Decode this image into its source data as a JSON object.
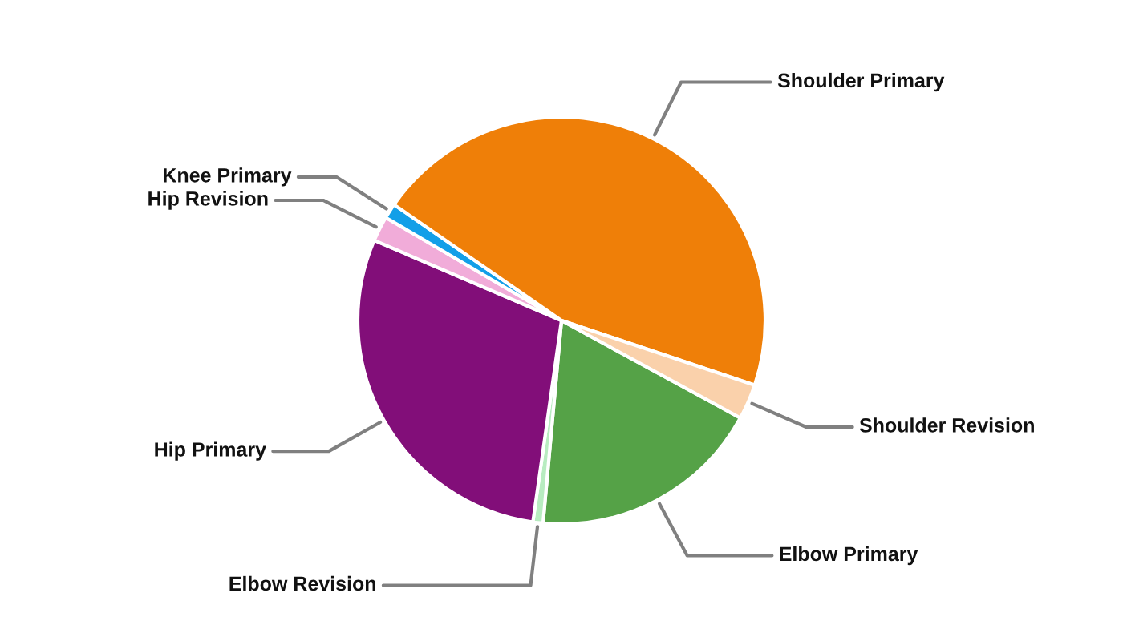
{
  "chart_data": {
    "type": "pie",
    "categories": [
      "Elbow Primary",
      "Elbow Revision",
      "Hip Primary",
      "Hip Revision",
      "Knee Primary",
      "Shoulder Primary",
      "Shoulder Revision"
    ],
    "values": [
      18.5,
      0.8,
      29.2,
      2.0,
      1.2,
      45.5,
      2.8
    ],
    "colors": [
      "#55a247",
      "#b8ecc0",
      "#820e79",
      "#f1acd9",
      "#139fe8",
      "#ef7f08",
      "#fad1ab"
    ]
  }
}
